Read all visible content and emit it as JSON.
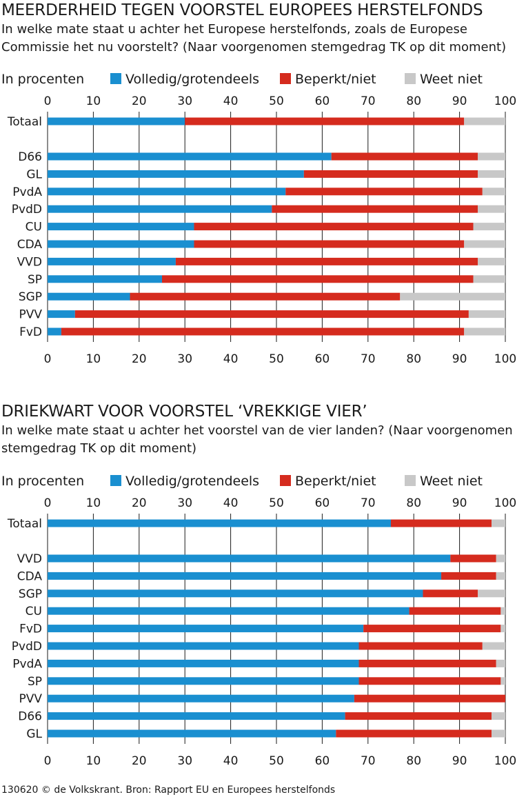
{
  "charts": [
    {
      "title": "MEERDERHEID TEGEN VOORSTEL EUROPEES HERSTELFONDS",
      "subtitle": "In welke mate staat u achter het Europese herstelfonds, zoals de Europese Commissie het nu voorstelt? (Naar voorgenomen stemgedrag TK op dit moment)",
      "legend_caption": "In procenten",
      "legend": [
        {
          "label": "Volledig/grotendeels",
          "color": "#1a8fd0"
        },
        {
          "label": "Beperkt/niet",
          "color": "#d52b1e"
        },
        {
          "label": "Weet niet",
          "color": "#c8c8c8"
        }
      ]
    },
    {
      "title": "DRIEKWART VOOR VOORSTEL ‘VREKKIGE VIER’",
      "subtitle": "In welke mate staat u achter het voorstel van de vier landen? (Naar voorgenomen stemgedrag TK op dit moment)",
      "legend_caption": "In procenten",
      "legend": [
        {
          "label": "Volledig/grotendeels",
          "color": "#1a8fd0"
        },
        {
          "label": "Beperkt/niet",
          "color": "#d52b1e"
        },
        {
          "label": "Weet niet",
          "color": "#c8c8c8"
        }
      ]
    }
  ],
  "chart_data": [
    {
      "type": "bar",
      "orientation": "horizontal-stacked",
      "title": "MEERDERHEID TEGEN VOORSTEL EUROPEES HERSTELFONDS",
      "subtitle": "In welke mate staat u achter het Europese herstelfonds, zoals de Europese Commissie het nu voorstelt? (Naar voorgenomen stemgedrag TK op dit moment)",
      "unit_label": "In procenten",
      "xlim": [
        0,
        100
      ],
      "x_ticks": [
        "0",
        "10",
        "20",
        "30",
        "40",
        "50",
        "60",
        "70",
        "80",
        "90",
        "100"
      ],
      "grid": true,
      "legend_position": "top",
      "categories": [
        "Totaal",
        "D66",
        "GL",
        "PvdA",
        "PvdD",
        "CU",
        "CDA",
        "VVD",
        "SP",
        "SGP",
        "PVV",
        "FvD"
      ],
      "series": [
        {
          "name": "Volledig/grotendeels",
          "color": "#1a8fd0",
          "values": [
            30,
            62,
            56,
            52,
            49,
            32,
            32,
            28,
            25,
            18,
            6,
            3
          ]
        },
        {
          "name": "Beperkt/niet",
          "color": "#d52b1e",
          "values": [
            61,
            32,
            38,
            43,
            45,
            61,
            59,
            66,
            68,
            59,
            86,
            88
          ]
        },
        {
          "name": "Weet niet",
          "color": "#c8c8c8",
          "values": [
            9,
            6,
            6,
            5,
            6,
            7,
            9,
            6,
            7,
            23,
            8,
            9
          ]
        }
      ]
    },
    {
      "type": "bar",
      "orientation": "horizontal-stacked",
      "title": "DRIEKWART VOOR VOORSTEL ‘VREKKIGE VIER’",
      "subtitle": "In welke mate staat u achter het voorstel van de vier landen? (Naar voorgenomen stemgedrag TK op dit moment)",
      "unit_label": "In procenten",
      "xlim": [
        0,
        100
      ],
      "x_ticks": [
        "0",
        "10",
        "20",
        "30",
        "40",
        "50",
        "60",
        "70",
        "80",
        "90",
        "100"
      ],
      "grid": true,
      "legend_position": "top",
      "categories": [
        "Totaal",
        "VVD",
        "CDA",
        "SGP",
        "CU",
        "FvD",
        "PvdD",
        "PvdA",
        "SP",
        "PVV",
        "D66",
        "GL"
      ],
      "series": [
        {
          "name": "Volledig/grotendeels",
          "color": "#1a8fd0",
          "values": [
            75,
            88,
            86,
            82,
            79,
            69,
            68,
            68,
            68,
            67,
            65,
            63
          ]
        },
        {
          "name": "Beperkt/niet",
          "color": "#d52b1e",
          "values": [
            22,
            10,
            12,
            12,
            20,
            30,
            27,
            30,
            31,
            33,
            32,
            34
          ]
        },
        {
          "name": "Weet niet",
          "color": "#c8c8c8",
          "values": [
            3,
            2,
            2,
            6,
            1,
            1,
            5,
            2,
            1,
            0,
            3,
            3
          ]
        }
      ]
    }
  ],
  "footer": "130620 © de Volkskrant. Bron: Rapport EU en Europees herstelfonds"
}
